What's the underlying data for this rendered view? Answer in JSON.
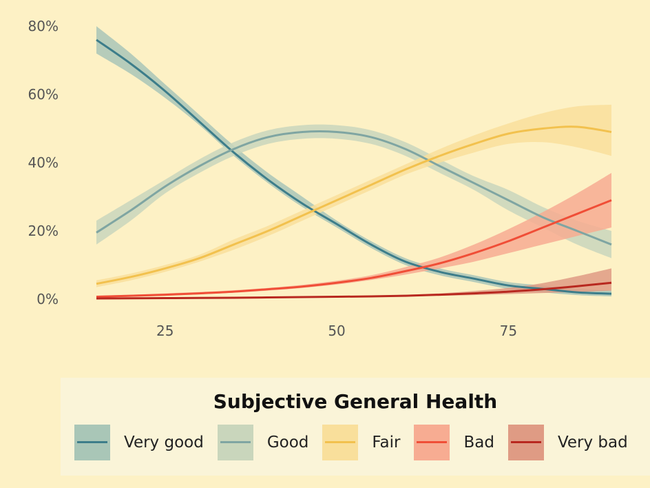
{
  "chart_data": {
    "type": "line",
    "title": "",
    "xlabel": "",
    "ylabel": "",
    "xlim": [
      15,
      90
    ],
    "ylim": [
      0,
      0.8
    ],
    "x_ticks": [
      25,
      50,
      75
    ],
    "x_tick_labels": [
      "25",
      "50",
      "75"
    ],
    "y_ticks": [
      0,
      0.2,
      0.4,
      0.6,
      0.8
    ],
    "y_tick_labels": [
      "0%",
      "20%",
      "40%",
      "60%",
      "80%"
    ],
    "grid": false,
    "legend_position": "bottom",
    "legend_title": "Subjective General Health",
    "x": [
      15,
      20,
      25,
      30,
      35,
      40,
      45,
      50,
      55,
      60,
      65,
      70,
      75,
      80,
      85,
      90
    ],
    "series": [
      {
        "name": "Very good",
        "color": "#3d7d8a",
        "band_color": "#a9c6b7",
        "values": [
          0.76,
          0.69,
          0.61,
          0.52,
          0.43,
          0.35,
          0.28,
          0.22,
          0.16,
          0.11,
          0.08,
          0.06,
          0.04,
          0.03,
          0.02,
          0.016
        ],
        "lower": [
          0.72,
          0.66,
          0.59,
          0.51,
          0.42,
          0.34,
          0.27,
          0.21,
          0.15,
          0.1,
          0.07,
          0.05,
          0.03,
          0.02,
          0.012,
          0.008
        ],
        "upper": [
          0.8,
          0.72,
          0.63,
          0.54,
          0.45,
          0.37,
          0.3,
          0.23,
          0.17,
          0.12,
          0.09,
          0.07,
          0.05,
          0.04,
          0.03,
          0.025
        ]
      },
      {
        "name": "Good",
        "color": "#7fa5a2",
        "band_color": "#c9d6bc",
        "values": [
          0.195,
          0.26,
          0.33,
          0.39,
          0.44,
          0.475,
          0.49,
          0.49,
          0.475,
          0.44,
          0.39,
          0.34,
          0.29,
          0.24,
          0.2,
          0.16
        ],
        "lower": [
          0.16,
          0.23,
          0.31,
          0.37,
          0.42,
          0.455,
          0.47,
          0.47,
          0.455,
          0.42,
          0.37,
          0.32,
          0.26,
          0.21,
          0.16,
          0.12
        ],
        "upper": [
          0.23,
          0.29,
          0.35,
          0.41,
          0.46,
          0.495,
          0.51,
          0.51,
          0.495,
          0.46,
          0.41,
          0.36,
          0.32,
          0.27,
          0.23,
          0.2
        ]
      },
      {
        "name": "Fair",
        "color": "#f2c14e",
        "band_color": "#f9df9b",
        "values": [
          0.045,
          0.065,
          0.09,
          0.12,
          0.16,
          0.2,
          0.245,
          0.29,
          0.335,
          0.38,
          0.42,
          0.455,
          0.485,
          0.5,
          0.505,
          0.49
        ],
        "lower": [
          0.035,
          0.055,
          0.08,
          0.11,
          0.145,
          0.185,
          0.23,
          0.275,
          0.32,
          0.365,
          0.4,
          0.43,
          0.455,
          0.46,
          0.445,
          0.42
        ],
        "upper": [
          0.055,
          0.075,
          0.1,
          0.13,
          0.175,
          0.215,
          0.26,
          0.305,
          0.35,
          0.395,
          0.44,
          0.48,
          0.515,
          0.545,
          0.565,
          0.57
        ]
      },
      {
        "name": "Bad",
        "color": "#f04e37",
        "band_color": "#f7ac92",
        "values": [
          0.007,
          0.01,
          0.013,
          0.017,
          0.022,
          0.029,
          0.037,
          0.048,
          0.062,
          0.082,
          0.105,
          0.135,
          0.17,
          0.21,
          0.25,
          0.29
        ],
        "lower": [
          0.004,
          0.007,
          0.01,
          0.014,
          0.019,
          0.025,
          0.033,
          0.043,
          0.056,
          0.072,
          0.09,
          0.11,
          0.135,
          0.16,
          0.185,
          0.21
        ],
        "upper": [
          0.01,
          0.013,
          0.017,
          0.021,
          0.026,
          0.033,
          0.042,
          0.054,
          0.07,
          0.094,
          0.122,
          0.16,
          0.205,
          0.255,
          0.31,
          0.37
        ]
      },
      {
        "name": "Very bad",
        "color": "#b8281f",
        "band_color": "#df9b84",
        "values": [
          0.002,
          0.0025,
          0.003,
          0.0035,
          0.004,
          0.005,
          0.006,
          0.007,
          0.008,
          0.01,
          0.013,
          0.017,
          0.022,
          0.029,
          0.038,
          0.048
        ],
        "lower": [
          0.001,
          0.0015,
          0.002,
          0.0025,
          0.003,
          0.004,
          0.005,
          0.006,
          0.007,
          0.008,
          0.01,
          0.012,
          0.015,
          0.018,
          0.021,
          0.025
        ],
        "upper": [
          0.004,
          0.0045,
          0.005,
          0.0055,
          0.006,
          0.007,
          0.008,
          0.009,
          0.01,
          0.013,
          0.017,
          0.024,
          0.033,
          0.047,
          0.067,
          0.09
        ]
      }
    ]
  }
}
